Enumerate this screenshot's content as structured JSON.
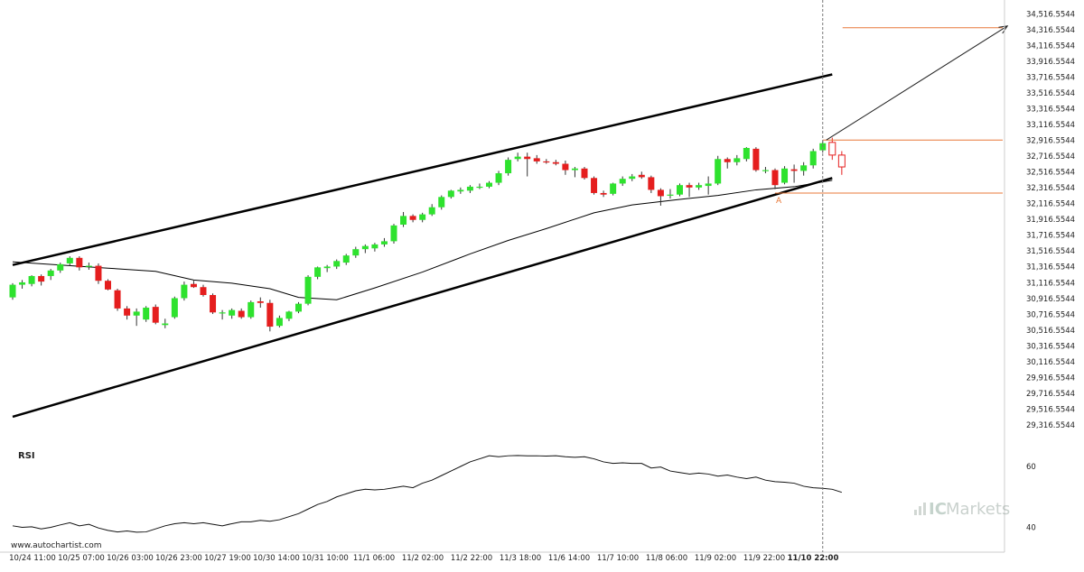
{
  "chart_data": {
    "type": "candlestick",
    "ylim": [
      29100,
      34600
    ],
    "y_ticks": [
      "34,516.5544",
      "34,316.5544",
      "34,116.5544",
      "33,916.5544",
      "33,716.5544",
      "33,516.5544",
      "33,316.5544",
      "33,116.5544",
      "32,916.5544",
      "32,716.5544",
      "32,516.5544",
      "32,316.5544",
      "32,116.5544",
      "31,916.5544",
      "31,716.5544",
      "31,516.5544",
      "31,316.5544",
      "31,116.5544",
      "30,916.5544",
      "30,716.5544",
      "30,516.5544",
      "30,316.5544",
      "30,116.5544",
      "29,916.5544",
      "29,716.5544",
      "29,516.5544",
      "29,316.5544"
    ],
    "x_ticks": [
      "10/24 11:00",
      "10/25 07:00",
      "10/26 03:00",
      "10/26 23:00",
      "10/27 19:00",
      "10/30 14:00",
      "10/31 10:00",
      "11/1 06:00",
      "11/2 02:00",
      "11/2 22:00",
      "11/3 18:00",
      "11/6 14:00",
      "11/7 10:00",
      "11/8 06:00",
      "11/9 02:00",
      "11/9 22:00",
      "11/10 22:00"
    ],
    "highlight_x_tick": "11/10 22:00",
    "colors": {
      "up": "#2ee22e",
      "down": "#e51e1e",
      "trend": "#000000",
      "level": "#e8793a",
      "ma": "#000000"
    },
    "candles": [
      {
        "o": 30930,
        "h": 31110,
        "l": 30900,
        "c": 31090
      },
      {
        "o": 31090,
        "h": 31150,
        "l": 31040,
        "c": 31120
      },
      {
        "o": 31100,
        "h": 31210,
        "l": 31070,
        "c": 31200
      },
      {
        "o": 31200,
        "h": 31220,
        "l": 31080,
        "c": 31130
      },
      {
        "o": 31200,
        "h": 31290,
        "l": 31150,
        "c": 31270
      },
      {
        "o": 31270,
        "h": 31370,
        "l": 31240,
        "c": 31350
      },
      {
        "o": 31360,
        "h": 31450,
        "l": 31330,
        "c": 31430
      },
      {
        "o": 31430,
        "h": 31450,
        "l": 31270,
        "c": 31310
      },
      {
        "o": 31320,
        "h": 31370,
        "l": 31280,
        "c": 31330
      },
      {
        "o": 31330,
        "h": 31360,
        "l": 31100,
        "c": 31140
      },
      {
        "o": 31140,
        "h": 31160,
        "l": 31020,
        "c": 31030
      },
      {
        "o": 31020,
        "h": 31040,
        "l": 30760,
        "c": 30790
      },
      {
        "o": 30790,
        "h": 30820,
        "l": 30650,
        "c": 30700
      },
      {
        "o": 30700,
        "h": 30790,
        "l": 30570,
        "c": 30750
      },
      {
        "o": 30650,
        "h": 30820,
        "l": 30620,
        "c": 30800
      },
      {
        "o": 30810,
        "h": 30840,
        "l": 30590,
        "c": 30610
      },
      {
        "o": 30580,
        "h": 30660,
        "l": 30540,
        "c": 30600
      },
      {
        "o": 30680,
        "h": 30940,
        "l": 30660,
        "c": 30920
      },
      {
        "o": 30920,
        "h": 31130,
        "l": 30890,
        "c": 31090
      },
      {
        "o": 31100,
        "h": 31140,
        "l": 31050,
        "c": 31060
      },
      {
        "o": 31060,
        "h": 31090,
        "l": 30940,
        "c": 30960
      },
      {
        "o": 30960,
        "h": 30980,
        "l": 30720,
        "c": 30740
      },
      {
        "o": 30730,
        "h": 30770,
        "l": 30650,
        "c": 30740
      },
      {
        "o": 30700,
        "h": 30790,
        "l": 30660,
        "c": 30770
      },
      {
        "o": 30760,
        "h": 30790,
        "l": 30660,
        "c": 30680
      },
      {
        "o": 30680,
        "h": 30890,
        "l": 30660,
        "c": 30870
      },
      {
        "o": 30880,
        "h": 30930,
        "l": 30800,
        "c": 30860
      },
      {
        "o": 30860,
        "h": 30900,
        "l": 30500,
        "c": 30560
      },
      {
        "o": 30570,
        "h": 30700,
        "l": 30550,
        "c": 30670
      },
      {
        "o": 30660,
        "h": 30760,
        "l": 30630,
        "c": 30750
      },
      {
        "o": 30750,
        "h": 30870,
        "l": 30730,
        "c": 30850
      },
      {
        "o": 30850,
        "h": 31210,
        "l": 30830,
        "c": 31190
      },
      {
        "o": 31190,
        "h": 31320,
        "l": 31160,
        "c": 31310
      },
      {
        "o": 31300,
        "h": 31340,
        "l": 31250,
        "c": 31320
      },
      {
        "o": 31320,
        "h": 31410,
        "l": 31290,
        "c": 31390
      },
      {
        "o": 31370,
        "h": 31480,
        "l": 31340,
        "c": 31460
      },
      {
        "o": 31460,
        "h": 31570,
        "l": 31430,
        "c": 31540
      },
      {
        "o": 31540,
        "h": 31600,
        "l": 31490,
        "c": 31580
      },
      {
        "o": 31550,
        "h": 31620,
        "l": 31510,
        "c": 31600
      },
      {
        "o": 31600,
        "h": 31680,
        "l": 31570,
        "c": 31640
      },
      {
        "o": 31640,
        "h": 31860,
        "l": 31610,
        "c": 31840
      },
      {
        "o": 31850,
        "h": 32010,
        "l": 31820,
        "c": 31960
      },
      {
        "o": 31960,
        "h": 31980,
        "l": 31880,
        "c": 31910
      },
      {
        "o": 31910,
        "h": 32000,
        "l": 31880,
        "c": 31980
      },
      {
        "o": 31980,
        "h": 32110,
        "l": 31960,
        "c": 32070
      },
      {
        "o": 32070,
        "h": 32220,
        "l": 32040,
        "c": 32200
      },
      {
        "o": 32200,
        "h": 32290,
        "l": 32180,
        "c": 32280
      },
      {
        "o": 32270,
        "h": 32320,
        "l": 32240,
        "c": 32290
      },
      {
        "o": 32280,
        "h": 32350,
        "l": 32250,
        "c": 32330
      },
      {
        "o": 32330,
        "h": 32370,
        "l": 32300,
        "c": 32330
      },
      {
        "o": 32330,
        "h": 32400,
        "l": 32310,
        "c": 32380
      },
      {
        "o": 32380,
        "h": 32530,
        "l": 32350,
        "c": 32500
      },
      {
        "o": 32500,
        "h": 32700,
        "l": 32470,
        "c": 32670
      },
      {
        "o": 32680,
        "h": 32760,
        "l": 32650,
        "c": 32710
      },
      {
        "o": 32710,
        "h": 32760,
        "l": 32460,
        "c": 32680
      },
      {
        "o": 32690,
        "h": 32730,
        "l": 32620,
        "c": 32650
      },
      {
        "o": 32650,
        "h": 32680,
        "l": 32620,
        "c": 32640
      },
      {
        "o": 32640,
        "h": 32670,
        "l": 32600,
        "c": 32620
      },
      {
        "o": 32620,
        "h": 32660,
        "l": 32480,
        "c": 32540
      },
      {
        "o": 32540,
        "h": 32580,
        "l": 32450,
        "c": 32560
      },
      {
        "o": 32560,
        "h": 32580,
        "l": 32420,
        "c": 32440
      },
      {
        "o": 32440,
        "h": 32460,
        "l": 32230,
        "c": 32250
      },
      {
        "o": 32250,
        "h": 32280,
        "l": 32200,
        "c": 32230
      },
      {
        "o": 32240,
        "h": 32380,
        "l": 32220,
        "c": 32370
      },
      {
        "o": 32370,
        "h": 32460,
        "l": 32340,
        "c": 32430
      },
      {
        "o": 32430,
        "h": 32490,
        "l": 32400,
        "c": 32460
      },
      {
        "o": 32480,
        "h": 32520,
        "l": 32430,
        "c": 32450
      },
      {
        "o": 32450,
        "h": 32470,
        "l": 32250,
        "c": 32290
      },
      {
        "o": 32290,
        "h": 32310,
        "l": 32090,
        "c": 32210
      },
      {
        "o": 32220,
        "h": 32300,
        "l": 32180,
        "c": 32230
      },
      {
        "o": 32230,
        "h": 32370,
        "l": 32210,
        "c": 32350
      },
      {
        "o": 32350,
        "h": 32380,
        "l": 32200,
        "c": 32320
      },
      {
        "o": 32320,
        "h": 32380,
        "l": 32290,
        "c": 32350
      },
      {
        "o": 32340,
        "h": 32460,
        "l": 32230,
        "c": 32370
      },
      {
        "o": 32370,
        "h": 32720,
        "l": 32350,
        "c": 32680
      },
      {
        "o": 32680,
        "h": 32700,
        "l": 32560,
        "c": 32640
      },
      {
        "o": 32640,
        "h": 32730,
        "l": 32600,
        "c": 32690
      },
      {
        "o": 32680,
        "h": 32830,
        "l": 32650,
        "c": 32820
      },
      {
        "o": 32810,
        "h": 32830,
        "l": 32520,
        "c": 32540
      },
      {
        "o": 32540,
        "h": 32580,
        "l": 32500,
        "c": 32540
      },
      {
        "o": 32540,
        "h": 32560,
        "l": 32300,
        "c": 32350
      },
      {
        "o": 32380,
        "h": 32590,
        "l": 32360,
        "c": 32560
      },
      {
        "o": 32550,
        "h": 32610,
        "l": 32380,
        "c": 32530
      },
      {
        "o": 32530,
        "h": 32640,
        "l": 32470,
        "c": 32600
      },
      {
        "o": 32600,
        "h": 32810,
        "l": 32560,
        "c": 32780
      },
      {
        "o": 32790,
        "h": 32910,
        "l": 32760,
        "c": 32880
      },
      {
        "o": 32890,
        "h": 32950,
        "l": 32670,
        "c": 32730,
        "hollow": true
      },
      {
        "o": 32730,
        "h": 32780,
        "l": 32480,
        "c": 32580,
        "hollow": true
      }
    ],
    "moving_average": [
      [
        0,
        31380
      ],
      [
        5,
        31340
      ],
      [
        10,
        31300
      ],
      [
        15,
        31260
      ],
      [
        19,
        31150
      ],
      [
        23,
        31110
      ],
      [
        27,
        31040
      ],
      [
        30,
        30930
      ],
      [
        34,
        30900
      ],
      [
        38,
        31050
      ],
      [
        43,
        31250
      ],
      [
        48,
        31480
      ],
      [
        52,
        31650
      ],
      [
        56,
        31800
      ],
      [
        61,
        32000
      ],
      [
        65,
        32100
      ],
      [
        70,
        32170
      ],
      [
        74,
        32220
      ],
      [
        78,
        32290
      ],
      [
        82,
        32330
      ],
      [
        86,
        32410
      ]
    ],
    "trend_upper": {
      "from": [
        0,
        31340
      ],
      "to": [
        86,
        33750
      ]
    },
    "trend_lower": {
      "from": [
        0,
        29420
      ],
      "to": [
        86,
        32440
      ]
    },
    "levels": {
      "resistance": 32920,
      "support": 32250,
      "target": 34340
    },
    "projection": {
      "from": [
        85,
        32920
      ],
      "to": [
        104,
        34340
      ]
    },
    "marker_label": "A",
    "marker_index": 80,
    "vertical_line_index": 85,
    "rsi": {
      "label": "RSI",
      "ylim": [
        36,
        68
      ],
      "ticks": [
        "60",
        "40"
      ],
      "values": [
        40.5,
        40.0,
        40.2,
        39.5,
        40.0,
        40.8,
        41.5,
        40.5,
        41.0,
        39.8,
        39.0,
        38.5,
        38.8,
        38.4,
        38.5,
        39.5,
        40.5,
        41.2,
        41.5,
        41.2,
        41.5,
        41.0,
        40.5,
        41.2,
        41.8,
        41.8,
        42.3,
        42.0,
        42.5,
        43.5,
        44.5,
        46.0,
        47.5,
        48.5,
        50.0,
        51.0,
        52.0,
        52.5,
        52.3,
        52.5,
        53.0,
        53.5,
        53.0,
        54.5,
        55.5,
        57.0,
        58.5,
        60.0,
        61.5,
        62.5,
        63.5,
        63.2,
        63.5,
        63.6,
        63.5,
        63.5,
        63.4,
        63.5,
        63.2,
        63.0,
        63.2,
        62.5,
        61.5,
        61.0,
        61.2,
        61.0,
        61.0,
        59.5,
        59.8,
        58.5,
        58.0,
        57.5,
        57.8,
        57.5,
        56.8,
        57.2,
        56.5,
        56.0,
        56.5,
        55.5,
        55.0,
        54.8,
        54.5,
        53.5,
        53.0,
        52.8,
        52.5,
        51.5
      ]
    }
  },
  "footer": {
    "source": "www.autochartist.com",
    "brand_prefix": "IC",
    "brand_suffix": "Markets"
  }
}
